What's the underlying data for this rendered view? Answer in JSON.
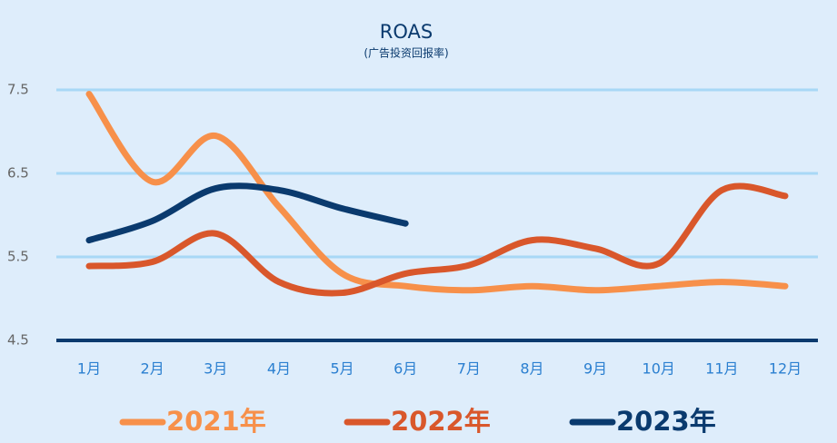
{
  "chart_data": {
    "type": "line",
    "title": "ROAS",
    "subtitle": "(广告投资回报率)",
    "categories": [
      "1月",
      "2月",
      "3月",
      "4月",
      "5月",
      "6月",
      "7月",
      "8月",
      "9月",
      "10月",
      "11月",
      "12月"
    ],
    "series": [
      {
        "name": "2021年",
        "color": "#f7904a",
        "values": [
          7.45,
          6.4,
          6.95,
          6.1,
          5.3,
          5.15,
          5.1,
          5.15,
          5.1,
          5.15,
          5.2,
          5.15
        ]
      },
      {
        "name": "2022年",
        "color": "#d9572b",
        "values": [
          5.39,
          5.44,
          5.78,
          5.2,
          5.07,
          5.3,
          5.4,
          5.7,
          5.6,
          5.42,
          6.3,
          6.23
        ]
      },
      {
        "name": "2023年",
        "color": "#0a3a6e",
        "values": [
          5.7,
          5.93,
          6.32,
          6.3,
          6.08,
          5.9,
          null,
          null,
          null,
          null,
          null,
          null
        ]
      }
    ],
    "ylim": [
      4.5,
      7.5
    ],
    "yticks": [
      4.5,
      5.5,
      6.5,
      7.5
    ],
    "grid": true,
    "legend": "bottom"
  }
}
